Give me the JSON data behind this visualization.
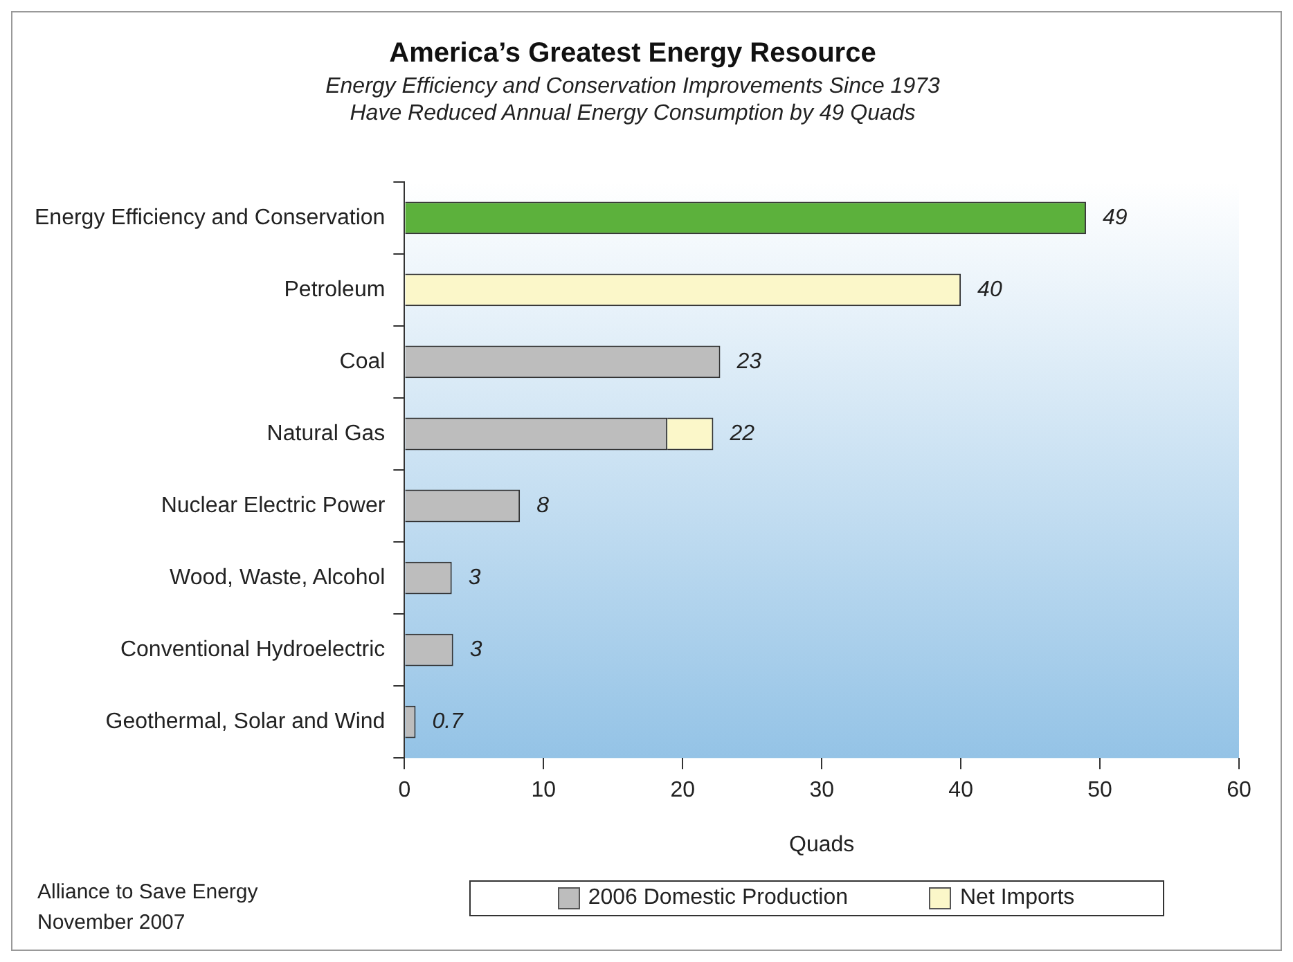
{
  "chart_data": {
    "type": "bar",
    "orientation": "horizontal",
    "stacked": true,
    "title": "America’s Greatest Energy Resource",
    "subtitle": "Energy Efficiency and Conservation Improvements Since 1973\nHave Reduced Annual Energy Consumption by 49 Quads",
    "xlabel": "Quads",
    "categories": [
      "Energy Efficiency and Conservation",
      "Petroleum",
      "Coal",
      "Natural Gas",
      "Nuclear Electric Power",
      "Wood, Waste, Alcohol",
      "Conventional Hydroelectric",
      "Geothermal, Solar and Wind"
    ],
    "series": [
      {
        "color": "#5cb13c",
        "values": [
          49,
          null,
          null,
          null,
          null,
          null,
          null,
          null
        ]
      },
      {
        "name": "2006 Domestic Production",
        "color": "#bdbdbd",
        "values": [
          null,
          null,
          22.7,
          18.9,
          8.3,
          3.4,
          3.5,
          0.8
        ]
      },
      {
        "name": "Net Imports",
        "color": "#fbf7c9",
        "values": [
          null,
          40,
          null,
          3.3,
          null,
          null,
          null,
          null
        ]
      }
    ],
    "totals": [
      "49",
      "40",
      "23",
      "22",
      "8",
      "3",
      "3",
      "0.7"
    ],
    "xlim": [
      0,
      60
    ],
    "xticks": [
      0,
      10,
      20,
      30,
      40,
      50,
      60
    ],
    "grid": false,
    "legend": "bottom",
    "annotations": [
      "Alliance to Save Energy",
      "November 2007"
    ]
  }
}
